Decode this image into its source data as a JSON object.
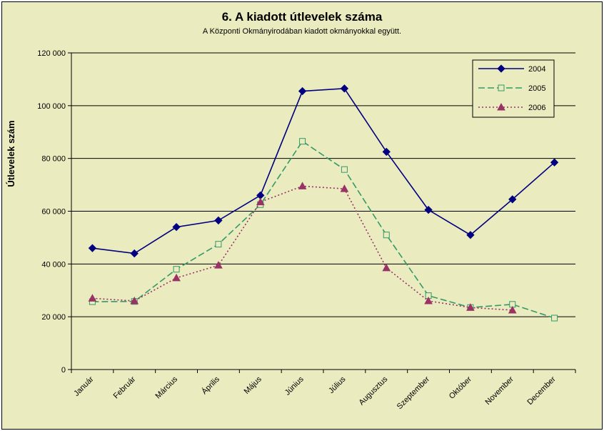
{
  "chart_data": {
    "type": "line",
    "title": "6. A  kiadott útlevelek száma",
    "subtitle": "A Központi Okmányirodában kiadott okmányokkal együtt.",
    "xlabel": "",
    "ylabel": "Útlevelek szám",
    "ylim": [
      0,
      120000
    ],
    "yticks": [
      0,
      20000,
      40000,
      60000,
      80000,
      100000,
      120000
    ],
    "ytick_labels": [
      "0",
      "20 000",
      "40 000",
      "60 000",
      "80 000",
      "100 000",
      "120 000"
    ],
    "grid": true,
    "legend_position": "top-right",
    "categories": [
      "Január",
      "Február",
      "Március",
      "Április",
      "Május",
      "Június",
      "Július",
      "Augusztus",
      "Szeptember",
      "Október",
      "November",
      "December"
    ],
    "series": [
      {
        "name": "2004",
        "color": "#000080",
        "style": "solid",
        "marker": "diamond",
        "values": [
          46000,
          44000,
          54000,
          56500,
          66000,
          105500,
          106500,
          82500,
          60500,
          51000,
          64500,
          78500
        ]
      },
      {
        "name": "2005",
        "color": "#339966",
        "style": "dashed",
        "marker": "open-square",
        "values": [
          25700,
          25800,
          38000,
          47500,
          62500,
          86500,
          75800,
          51000,
          28000,
          23500,
          24700,
          19500
        ]
      },
      {
        "name": "2006",
        "color": "#993366",
        "style": "dotted",
        "marker": "triangle",
        "values": [
          27000,
          26000,
          34700,
          39500,
          63500,
          69500,
          68500,
          38500,
          26000,
          23500,
          22500,
          null
        ]
      }
    ]
  }
}
